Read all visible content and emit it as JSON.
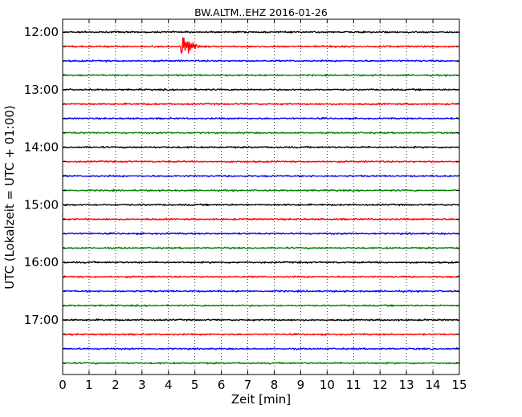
{
  "chart_data": {
    "type": "line",
    "title": "BW.ALTM..EHZ 2016-01-26",
    "xlabel": "Zeit  [min]",
    "ylabel": "UTC (Lokalzeit = UTC + 01:00)",
    "xlim": [
      0,
      15
    ],
    "x_ticks": [
      "0",
      "1",
      "2",
      "3",
      "4",
      "5",
      "6",
      "7",
      "8",
      "9",
      "10",
      "11",
      "12",
      "13",
      "14",
      "15"
    ],
    "y_tick_labels": [
      "12:00",
      "13:00",
      "14:00",
      "15:00",
      "16:00",
      "17:00"
    ],
    "grid": "vertical dotted",
    "trace_colors": [
      "#000000",
      "#ff0000",
      "#0000ff",
      "#008000"
    ],
    "traces": [
      {
        "start": "12:00",
        "color": "#000000"
      },
      {
        "start": "12:15",
        "color": "#ff0000"
      },
      {
        "start": "12:30",
        "color": "#0000ff"
      },
      {
        "start": "12:45",
        "color": "#008000"
      },
      {
        "start": "13:00",
        "color": "#000000"
      },
      {
        "start": "13:15",
        "color": "#ff0000"
      },
      {
        "start": "13:30",
        "color": "#0000ff"
      },
      {
        "start": "13:45",
        "color": "#008000"
      },
      {
        "start": "14:00",
        "color": "#000000"
      },
      {
        "start": "14:15",
        "color": "#ff0000"
      },
      {
        "start": "14:30",
        "color": "#0000ff"
      },
      {
        "start": "14:45",
        "color": "#008000"
      },
      {
        "start": "15:00",
        "color": "#000000"
      },
      {
        "start": "15:15",
        "color": "#ff0000"
      },
      {
        "start": "15:30",
        "color": "#0000ff"
      },
      {
        "start": "15:45",
        "color": "#008000"
      },
      {
        "start": "16:00",
        "color": "#000000"
      },
      {
        "start": "16:15",
        "color": "#ff0000"
      },
      {
        "start": "16:30",
        "color": "#0000ff"
      },
      {
        "start": "16:45",
        "color": "#008000"
      },
      {
        "start": "17:00",
        "color": "#000000"
      },
      {
        "start": "17:15",
        "color": "#ff0000"
      },
      {
        "start": "17:30",
        "color": "#0000ff"
      },
      {
        "start": "17:45",
        "color": "#008000"
      }
    ],
    "events": [
      {
        "trace_start": "12:15",
        "time_min": 4.45
      }
    ]
  }
}
